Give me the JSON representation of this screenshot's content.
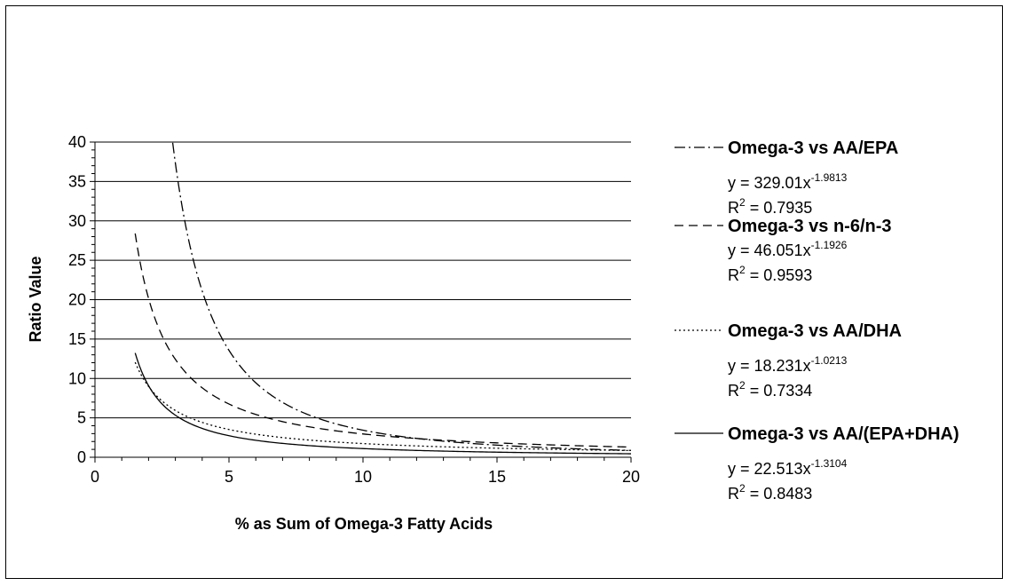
{
  "chart_data": {
    "type": "line",
    "title": "",
    "xlabel": "% as Sum of Omega-3 Fatty Acids",
    "ylabel": "Ratio Value",
    "xlim": [
      0,
      20
    ],
    "ylim": [
      0,
      40
    ],
    "x_ticks": [
      "0",
      "5",
      "10",
      "15",
      "20"
    ],
    "y_ticks": [
      "0",
      "5",
      "10",
      "15",
      "20",
      "25",
      "30",
      "35",
      "40"
    ],
    "grid": "horizontal",
    "legend_position": "right",
    "series": [
      {
        "name": "Omega-3 vs AA/EPA",
        "dash": "dashdot",
        "equation_prefix": "y = 329.01x",
        "equation_exponent": "-1.9813",
        "r2_label": "R",
        "r2_sup": "2",
        "r2_value": " = 0.7935",
        "coef": 329.01,
        "exponent": -1.9813,
        "x": [
          2.9,
          3.5,
          4,
          5,
          6,
          7,
          8,
          9,
          10,
          11,
          12,
          13,
          14,
          15,
          16,
          17,
          18,
          19,
          20
        ],
        "y": [
          40.0,
          27.9,
          21.4,
          13.8,
          9.6,
          7.0,
          5.4,
          4.3,
          3.4,
          2.9,
          2.4,
          2.0,
          1.8,
          1.5,
          1.3,
          1.2,
          1.0,
          0.9,
          0.8
        ]
      },
      {
        "name": "Omega-3 vs n-6/n-3",
        "dash": "dash",
        "equation_prefix": "y = 46.051x",
        "equation_exponent": "-1.1926",
        "r2_label": "R",
        "r2_sup": "2",
        "r2_value": " = 0.9593",
        "coef": 46.051,
        "exponent": -1.1926,
        "x": [
          1.5,
          2,
          2.5,
          3,
          4,
          5,
          6,
          7,
          8,
          9,
          10,
          12,
          14,
          16,
          18,
          20
        ],
        "y": [
          28.2,
          20.1,
          15.3,
          12.2,
          8.6,
          6.6,
          5.3,
          4.4,
          3.8,
          3.3,
          2.9,
          2.4,
          2.0,
          1.7,
          1.5,
          1.3
        ]
      },
      {
        "name": "Omega-3 vs AA/DHA",
        "dash": "dot",
        "equation_prefix": "y = 18.231x",
        "equation_exponent": "-1.0213",
        "r2_label": "R",
        "r2_sup": "2",
        "r2_value": " = 0.7334",
        "coef": 18.231,
        "exponent": -1.0213,
        "x": [
          1.5,
          2,
          2.5,
          3,
          4,
          5,
          6,
          7,
          8,
          10,
          12,
          14,
          16,
          18,
          20
        ],
        "y": [
          11.9,
          8.9,
          7.1,
          5.9,
          4.4,
          3.5,
          2.9,
          2.5,
          2.2,
          1.7,
          1.4,
          1.2,
          1.1,
          1.0,
          0.9
        ]
      },
      {
        "name": "Omega-3 vs AA/(EPA+DHA)",
        "dash": "solid",
        "equation_prefix": "y = 22.513x",
        "equation_exponent": "-1.3104",
        "r2_label": "R",
        "r2_sup": "2",
        "r2_value": " = 0.8483",
        "coef": 22.513,
        "exponent": -1.3104,
        "x": [
          1.5,
          2,
          2.5,
          3,
          4,
          5,
          6,
          7,
          8,
          10,
          12,
          14,
          16,
          18,
          20
        ],
        "y": [
          13.8,
          9.1,
          6.9,
          5.3,
          3.6,
          2.7,
          2.1,
          1.7,
          1.5,
          1.1,
          0.9,
          0.7,
          0.6,
          0.5,
          0.5
        ]
      }
    ]
  }
}
